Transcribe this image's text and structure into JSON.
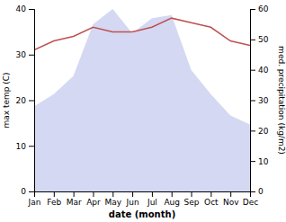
{
  "chart_data": {
    "type": "line",
    "xlabel": "date (month)",
    "ylabel": "max temp (C)",
    "y2label": "med. precipitation (kg/m2)",
    "categories": [
      "Jan",
      "Feb",
      "Mar",
      "Apr",
      "May",
      "Jun",
      "Jul",
      "Aug",
      "Sep",
      "Oct",
      "Nov",
      "Dec"
    ],
    "series": [
      {
        "type": "area",
        "axis": "y2",
        "color": "#b0b8e8",
        "values": [
          28,
          32,
          38,
          55,
          60,
          52,
          57,
          58,
          40,
          32,
          25,
          22
        ]
      },
      {
        "type": "line",
        "color": "#c05050",
        "values": [
          31,
          33,
          34,
          36,
          35,
          35,
          36,
          38,
          37,
          36,
          33,
          32
        ]
      }
    ],
    "ylim": [
      0,
      40
    ],
    "yticks": [
      0,
      10,
      20,
      30,
      40
    ],
    "y2lim": [
      0,
      60
    ],
    "y2ticks": [
      0,
      10,
      20,
      30,
      40,
      50,
      60
    ],
    "grid": false
  }
}
